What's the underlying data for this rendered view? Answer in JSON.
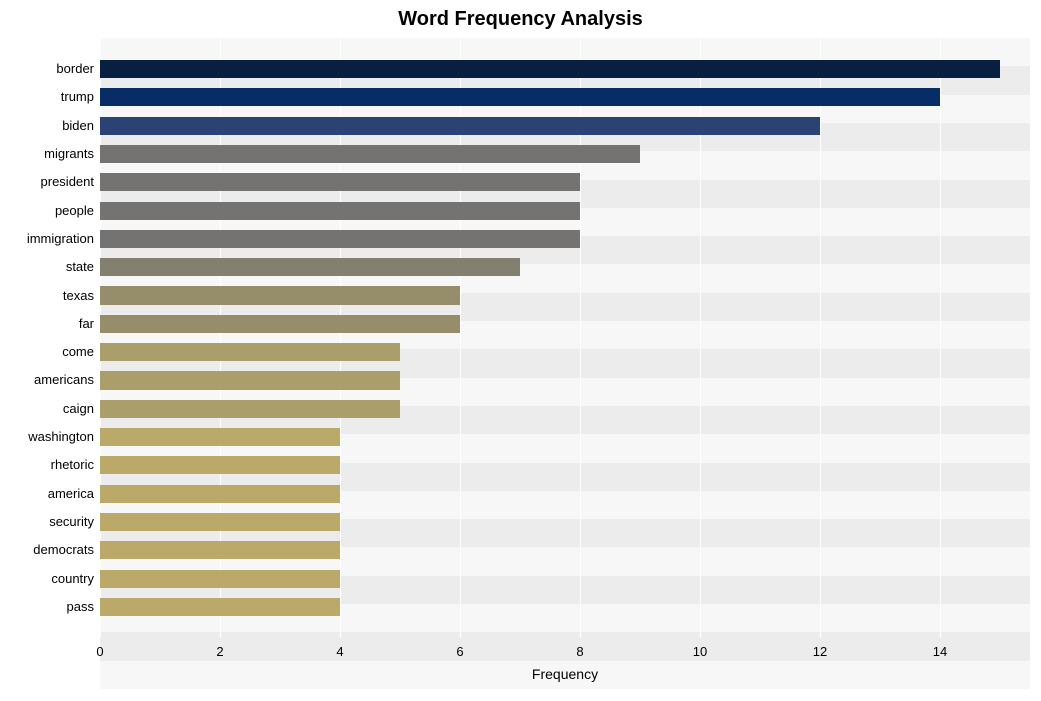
{
  "chart": {
    "type": "horizontal_bar",
    "title": "Word Frequency Analysis",
    "title_fontsize": 20,
    "title_fontweight": "700",
    "title_color": "#000000",
    "background_color": "#ffffff",
    "plot_background": "#f7f7f7",
    "stripe_colors": [
      "#f7f7f7",
      "#ececec"
    ],
    "grid_color": "#ffffff",
    "xlim": [
      0,
      15.5
    ],
    "xtick_step": 2,
    "xticks": [
      0,
      2,
      4,
      6,
      8,
      10,
      12,
      14
    ],
    "xlabel": "Frequency",
    "xlabel_fontsize": 14,
    "ylabel_fontsize": 13,
    "tick_fontsize": 13,
    "bar_height_ratio": 0.64,
    "categories": [
      "border",
      "trump",
      "biden",
      "migrants",
      "president",
      "people",
      "immigration",
      "state",
      "texas",
      "far",
      "come",
      "americans",
      "caign",
      "washington",
      "rhetoric",
      "america",
      "security",
      "democrats",
      "country",
      "pass"
    ],
    "values": [
      15,
      14,
      12,
      9,
      8,
      8,
      8,
      7,
      6,
      6,
      5,
      5,
      5,
      4,
      4,
      4,
      4,
      4,
      4,
      4
    ],
    "bar_colors": [
      "#081f41",
      "#072c66",
      "#2b4374",
      "#757371",
      "#757371",
      "#757371",
      "#757371",
      "#84806f",
      "#968d6a",
      "#968d6a",
      "#aa9e6a",
      "#aa9e6a",
      "#aa9e6a",
      "#bba969",
      "#bba969",
      "#bba969",
      "#bba969",
      "#bba969",
      "#bba969",
      "#bba969"
    ]
  }
}
